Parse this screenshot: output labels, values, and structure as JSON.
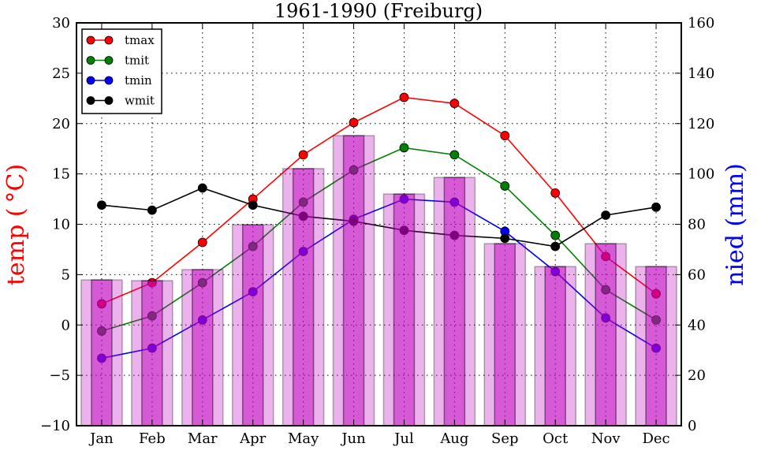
{
  "chart_data": {
    "type": "bar+line",
    "title": "1961-1990 (Freiburg)",
    "categories": [
      "Jan",
      "Feb",
      "Mar",
      "Apr",
      "May",
      "Jun",
      "Jul",
      "Aug",
      "Sep",
      "Oct",
      "Nov",
      "Dec"
    ],
    "ylabel_left": "temp ( °C)",
    "ylabel_right": "nied (mm)",
    "ylim_left": [
      -10,
      30
    ],
    "ylim_right": [
      0,
      160
    ],
    "yticks_left": [
      "−10",
      "−5",
      "0",
      "5",
      "10",
      "15",
      "20",
      "25",
      "30"
    ],
    "yticks_left_values": [
      -10,
      -5,
      0,
      5,
      10,
      15,
      20,
      25,
      30
    ],
    "yticks_right": [
      "0",
      "20",
      "40",
      "60",
      "80",
      "100",
      "120",
      "140",
      "160"
    ],
    "yticks_right_values": [
      0,
      20,
      40,
      60,
      80,
      100,
      120,
      140,
      160
    ],
    "grid": true,
    "legend_position": "top-left",
    "series": [
      {
        "name": "tmax",
        "axis": "left",
        "type": "line",
        "color": "#ff0000",
        "values": [
          2.1,
          4.2,
          8.2,
          12.5,
          16.9,
          20.1,
          22.6,
          22.0,
          18.8,
          13.1,
          6.8,
          3.1
        ]
      },
      {
        "name": "tmit",
        "axis": "left",
        "type": "line",
        "color": "#008000",
        "values": [
          -0.6,
          0.9,
          4.2,
          7.8,
          12.2,
          15.4,
          17.6,
          16.9,
          13.8,
          8.9,
          3.5,
          0.5
        ]
      },
      {
        "name": "tmin",
        "axis": "left",
        "type": "line",
        "color": "#0000ff",
        "values": [
          -3.3,
          -2.3,
          0.5,
          3.3,
          7.3,
          10.5,
          12.5,
          12.2,
          9.3,
          5.3,
          0.7,
          -2.3
        ]
      },
      {
        "name": "wmit",
        "axis": "left",
        "type": "line",
        "color": "#000000",
        "values": [
          11.9,
          11.4,
          13.6,
          11.9,
          10.8,
          10.3,
          9.4,
          8.9,
          8.6,
          7.8,
          10.9,
          11.7
        ]
      }
    ],
    "bars": {
      "name": "nied",
      "axis": "right",
      "color": "#bf00bf",
      "values": [
        57.9,
        57.6,
        62.0,
        79.8,
        102.1,
        115.2,
        92.0,
        98.6,
        72.3,
        63.2,
        72.3,
        63.2
      ]
    }
  }
}
